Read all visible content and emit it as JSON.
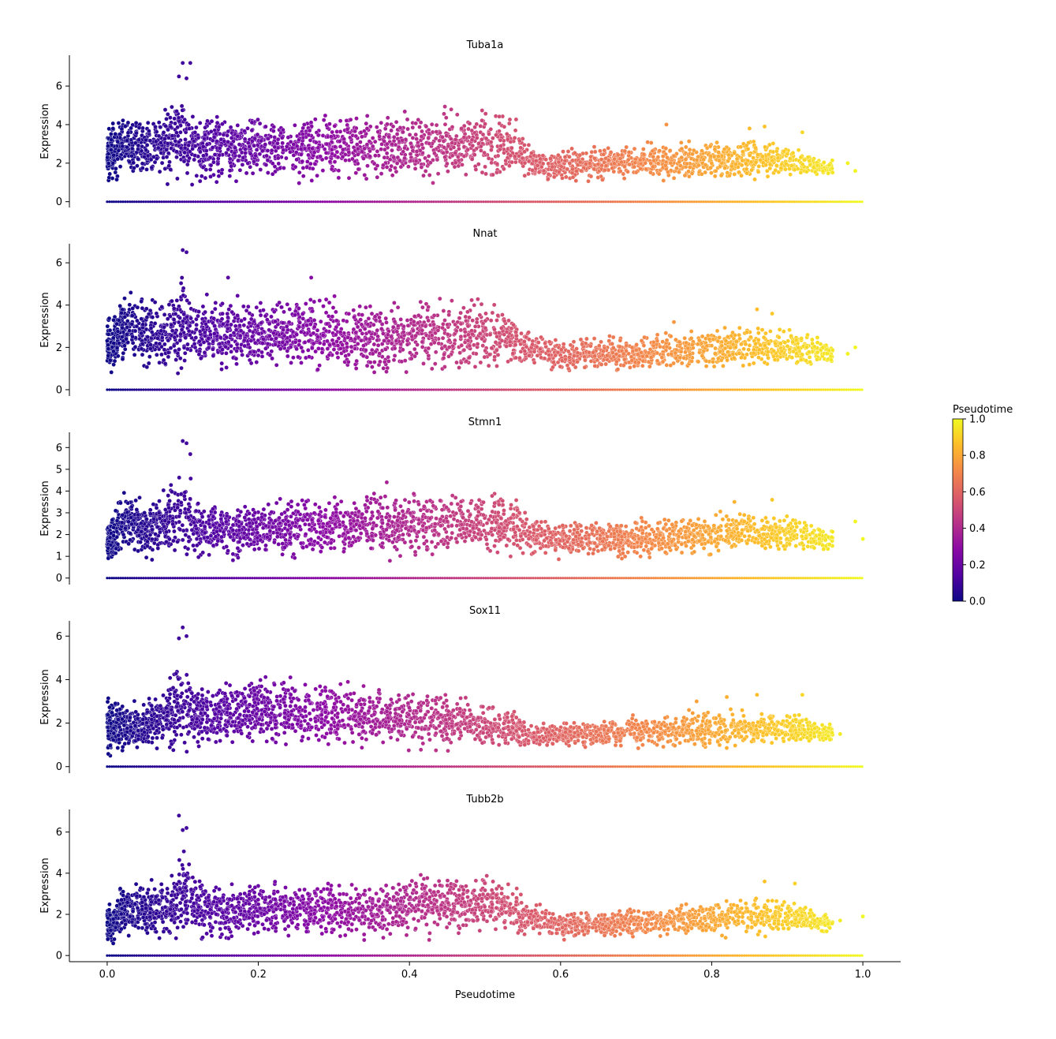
{
  "chart_data": {
    "type": "scatter",
    "colormap": "plasma",
    "xlabel": "Pseudotime",
    "ylabel": "Expression",
    "xlim": [
      -0.05,
      1.05
    ],
    "xticks": [
      0.0,
      0.2,
      0.4,
      0.6,
      0.8,
      1.0
    ],
    "xtick_labels": [
      "0.0",
      "0.2",
      "0.4",
      "0.6",
      "0.8",
      "1.0"
    ],
    "colorbar": {
      "label": "Pseudotime",
      "range": [
        0.0,
        1.0
      ],
      "ticks": [
        0.0,
        0.2,
        0.4,
        0.6,
        0.8,
        1.0
      ],
      "tick_labels": [
        "0.0",
        "0.2",
        "0.4",
        "0.6",
        "0.8",
        "1.0"
      ],
      "colors": [
        "#0d0887",
        "#5302a3",
        "#8b0aa5",
        "#b83289",
        "#db5c68",
        "#f48849",
        "#febd2a",
        "#f0f921"
      ]
    },
    "panels": [
      {
        "title": "Tuba1a",
        "ylim": [
          -0.3,
          7.6
        ],
        "yticks": [
          0,
          2,
          4,
          6
        ],
        "ytick_labels": [
          "0",
          "2",
          "4",
          "6"
        ],
        "zero_row": true,
        "envelope": {
          "x": [
            0.0,
            0.01,
            0.02,
            0.05,
            0.08,
            0.1,
            0.12,
            0.15,
            0.2,
            0.3,
            0.4,
            0.45,
            0.5,
            0.54,
            0.55,
            0.56,
            0.6,
            0.7,
            0.8,
            0.88,
            0.92,
            0.96
          ],
          "upper": [
            4.2,
            4.6,
            4.8,
            4.8,
            5.2,
            6.0,
            5.2,
            4.8,
            4.8,
            4.9,
            5.0,
            5.2,
            5.1,
            4.9,
            4.0,
            3.0,
            2.9,
            3.2,
            3.3,
            3.4,
            3.0,
            2.2
          ],
          "lower": [
            0.5,
            0.6,
            1.4,
            0.7,
            0.6,
            0.6,
            0.6,
            0.7,
            0.8,
            0.8,
            0.8,
            0.7,
            0.7,
            1.0,
            1.0,
            0.9,
            0.9,
            0.9,
            0.9,
            1.0,
            1.0,
            1.3
          ]
        },
        "outliers": [
          [
            0.095,
            6.5
          ],
          [
            0.1,
            7.2
          ],
          [
            0.11,
            7.2
          ],
          [
            0.105,
            6.4
          ],
          [
            0.74,
            4.0
          ],
          [
            0.87,
            3.9
          ],
          [
            0.92,
            3.6
          ],
          [
            0.85,
            3.8
          ],
          [
            0.99,
            1.6
          ],
          [
            0.98,
            2.0
          ]
        ]
      },
      {
        "title": "Nnat",
        "ylim": [
          -0.3,
          6.9
        ],
        "yticks": [
          0,
          2,
          4,
          6
        ],
        "ytick_labels": [
          "0",
          "2",
          "4",
          "6"
        ],
        "zero_row": true,
        "envelope": {
          "x": [
            0.0,
            0.01,
            0.02,
            0.05,
            0.08,
            0.1,
            0.12,
            0.15,
            0.2,
            0.28,
            0.34,
            0.4,
            0.45,
            0.5,
            0.52,
            0.54,
            0.56,
            0.6,
            0.7,
            0.8,
            0.88,
            0.93,
            0.96
          ],
          "upper": [
            3.8,
            3.7,
            5.0,
            4.6,
            4.8,
            5.9,
            5.0,
            4.8,
            4.5,
            4.9,
            4.2,
            4.6,
            4.8,
            4.6,
            4.3,
            4.0,
            3.0,
            2.6,
            2.7,
            3.1,
            3.2,
            2.8,
            2.3
          ],
          "lower": [
            0.4,
            0.6,
            1.0,
            0.6,
            0.5,
            0.5,
            0.5,
            0.6,
            0.6,
            0.6,
            0.5,
            0.6,
            0.6,
            0.6,
            0.7,
            0.8,
            0.8,
            0.7,
            0.7,
            0.8,
            0.9,
            0.9,
            1.2
          ]
        },
        "outliers": [
          [
            0.1,
            6.6
          ],
          [
            0.105,
            6.5
          ],
          [
            0.16,
            5.3
          ],
          [
            0.27,
            5.3
          ],
          [
            0.86,
            3.8
          ],
          [
            0.88,
            3.6
          ],
          [
            0.75,
            3.2
          ],
          [
            0.99,
            2.0
          ],
          [
            0.98,
            1.7
          ]
        ]
      },
      {
        "title": "Stmn1",
        "ylim": [
          -0.3,
          6.7
        ],
        "yticks": [
          0,
          1,
          2,
          3,
          4,
          5,
          6
        ],
        "ytick_labels": [
          "0",
          "1",
          "2",
          "3",
          "4",
          "5",
          "6"
        ],
        "zero_row": true,
        "envelope": {
          "x": [
            0.0,
            0.01,
            0.02,
            0.03,
            0.06,
            0.08,
            0.1,
            0.12,
            0.15,
            0.2,
            0.3,
            0.4,
            0.45,
            0.5,
            0.54,
            0.56,
            0.6,
            0.7,
            0.8,
            0.85,
            0.9,
            0.94,
            0.96
          ],
          "upper": [
            3.2,
            3.6,
            4.2,
            4.3,
            3.9,
            4.6,
            5.5,
            4.0,
            3.8,
            3.7,
            4.1,
            4.4,
            4.5,
            4.3,
            4.2,
            3.0,
            2.8,
            2.8,
            3.2,
            3.4,
            3.2,
            2.7,
            2.2
          ],
          "lower": [
            0.4,
            0.5,
            1.1,
            0.8,
            0.6,
            0.6,
            0.6,
            0.6,
            0.6,
            0.6,
            0.7,
            0.7,
            0.7,
            0.7,
            0.8,
            0.8,
            0.8,
            0.8,
            0.8,
            0.9,
            0.9,
            1.0,
            1.3
          ]
        },
        "outliers": [
          [
            0.1,
            6.3
          ],
          [
            0.105,
            6.2
          ],
          [
            0.11,
            5.7
          ],
          [
            0.37,
            4.4
          ],
          [
            0.88,
            3.6
          ],
          [
            0.83,
            3.5
          ],
          [
            0.99,
            2.6
          ],
          [
            1.0,
            1.8
          ]
        ]
      },
      {
        "title": "Sox11",
        "ylim": [
          -0.3,
          6.7
        ],
        "yticks": [
          0,
          2,
          4,
          6
        ],
        "ytick_labels": [
          "0",
          "2",
          "4",
          "6"
        ],
        "zero_row": true,
        "envelope": {
          "x": [
            0.0,
            0.01,
            0.02,
            0.05,
            0.08,
            0.1,
            0.12,
            0.16,
            0.2,
            0.25,
            0.3,
            0.4,
            0.45,
            0.5,
            0.54,
            0.56,
            0.6,
            0.7,
            0.8,
            0.88,
            0.93,
            0.96
          ],
          "upper": [
            3.6,
            3.2,
            3.3,
            3.2,
            4.3,
            5.5,
            4.0,
            4.1,
            4.6,
            4.4,
            4.1,
            4.0,
            3.6,
            3.2,
            2.9,
            2.0,
            2.2,
            2.4,
            2.8,
            2.7,
            2.4,
            2.0
          ],
          "lower": [
            0.3,
            0.4,
            0.5,
            0.5,
            0.5,
            0.5,
            0.5,
            0.5,
            0.6,
            0.6,
            0.6,
            0.5,
            0.5,
            0.6,
            0.7,
            0.8,
            0.7,
            0.7,
            0.7,
            0.8,
            0.9,
            1.1
          ]
        },
        "outliers": [
          [
            0.1,
            6.4
          ],
          [
            0.095,
            5.9
          ],
          [
            0.105,
            6.0
          ],
          [
            0.86,
            3.3
          ],
          [
            0.92,
            3.3
          ],
          [
            0.82,
            3.2
          ],
          [
            0.78,
            3.0
          ],
          [
            0.97,
            1.5
          ]
        ]
      },
      {
        "title": "Tubb2b",
        "ylim": [
          -0.3,
          7.1
        ],
        "yticks": [
          0,
          2,
          4,
          6
        ],
        "ytick_labels": [
          "0",
          "2",
          "4",
          "6"
        ],
        "zero_row": true,
        "envelope": {
          "x": [
            0.0,
            0.01,
            0.02,
            0.05,
            0.08,
            0.1,
            0.12,
            0.15,
            0.2,
            0.3,
            0.35,
            0.4,
            0.45,
            0.5,
            0.54,
            0.56,
            0.6,
            0.7,
            0.8,
            0.88,
            0.93,
            0.96
          ],
          "upper": [
            2.7,
            3.0,
            3.8,
            3.9,
            4.1,
            5.8,
            4.2,
            3.8,
            3.8,
            3.9,
            3.6,
            4.2,
            4.3,
            4.2,
            3.8,
            2.8,
            2.2,
            2.4,
            2.8,
            3.0,
            2.6,
            2.0
          ],
          "lower": [
            0.3,
            0.5,
            0.6,
            0.5,
            0.5,
            0.5,
            0.5,
            0.5,
            0.6,
            0.6,
            0.5,
            0.6,
            0.6,
            0.6,
            0.7,
            0.8,
            0.7,
            0.7,
            0.8,
            0.8,
            0.9,
            1.1
          ]
        },
        "outliers": [
          [
            0.095,
            6.8
          ],
          [
            0.1,
            6.1
          ],
          [
            0.105,
            6.2
          ],
          [
            0.87,
            3.6
          ],
          [
            0.91,
            3.5
          ],
          [
            0.97,
            1.7
          ],
          [
            1.0,
            1.9
          ]
        ]
      }
    ]
  }
}
